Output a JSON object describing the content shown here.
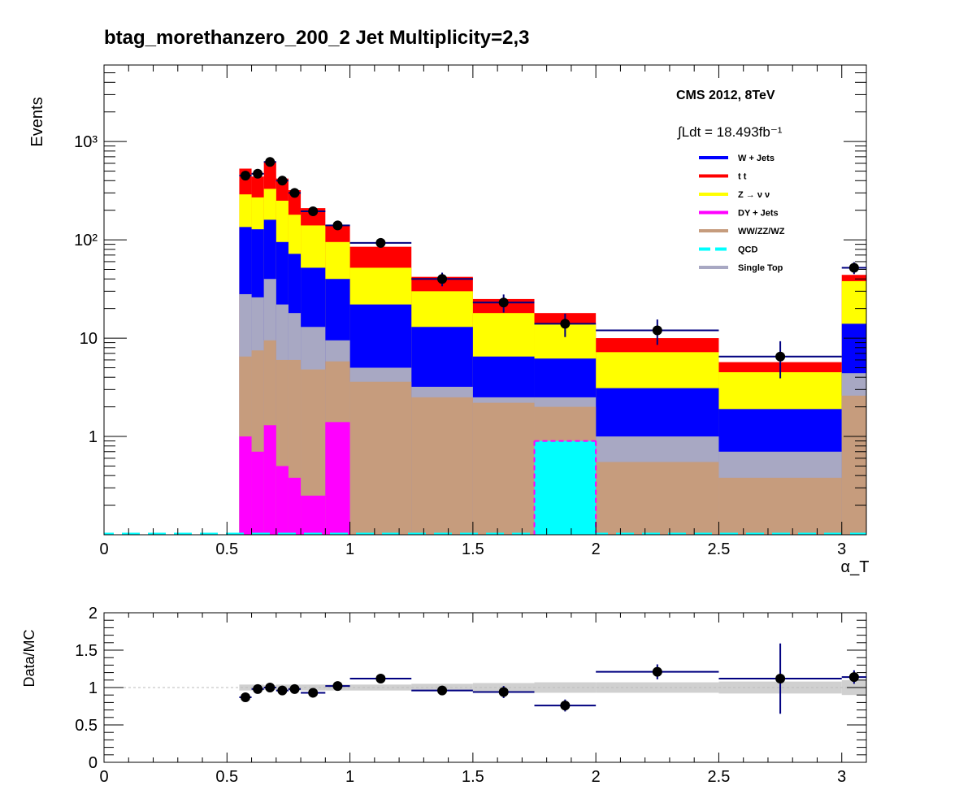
{
  "chart_data": [
    {
      "type": "stacked-histogram",
      "title": "btag_morethanzero_200_2    Jet Multiplicity=2,3",
      "ylabel": "Events",
      "xlabel": "α_T",
      "xlim": [
        0,
        3.1
      ],
      "ylim": [
        0.1,
        6000
      ],
      "yscale": "log",
      "x_ticks": [
        "0",
        "0.5",
        "1",
        "1.5",
        "2",
        "2.5",
        "3"
      ],
      "y_ticks": [
        {
          "value": 1,
          "label": "1"
        },
        {
          "value": 10,
          "label": "10"
        },
        {
          "value": 100,
          "label": "10²"
        },
        {
          "value": 1000,
          "label": "10³"
        }
      ],
      "annotations": {
        "experiment": "CMS 2012, 8TeV",
        "luminosity": "∫Ldt = 18.493fb⁻¹"
      },
      "legend": [
        {
          "label": "W + Jets",
          "color": "#0000ff"
        },
        {
          "label": "t   t",
          "color": "#ff0000"
        },
        {
          "label": "Z → ν   ν",
          "color": "#ffff00"
        },
        {
          "label": "DY + Jets",
          "color": "#ff00ff"
        },
        {
          "label": "WW/ZZ/WZ",
          "color": "#c69c7d"
        },
        {
          "label": "QCD",
          "color": "#00ffff"
        },
        {
          "label": "Single Top",
          "color": "#a8a8c3"
        }
      ],
      "bins": [
        [
          0.55,
          0.6
        ],
        [
          0.6,
          0.65
        ],
        [
          0.65,
          0.7
        ],
        [
          0.7,
          0.75
        ],
        [
          0.75,
          0.8
        ],
        [
          0.8,
          0.9
        ],
        [
          0.9,
          1.0
        ],
        [
          1.0,
          1.25
        ],
        [
          1.25,
          1.5
        ],
        [
          1.5,
          1.75
        ],
        [
          1.75,
          2.0
        ],
        [
          2.0,
          2.5
        ],
        [
          2.5,
          3.0
        ],
        [
          3.0,
          3.1
        ]
      ],
      "stack_order": [
        "QCD",
        "DY + Jets",
        "WW/ZZ/WZ",
        "Single Top",
        "W + Jets",
        "Z → ν   ν",
        "t   t"
      ],
      "stack_cumulative_tops": {
        "DY + Jets": [
          1.0,
          0.7,
          1.3,
          0.5,
          0.38,
          0.25,
          1.4,
          0,
          0,
          0,
          0.9,
          0,
          0,
          0
        ],
        "WW/ZZ/WZ": [
          6.5,
          7.5,
          9.5,
          6.0,
          6.0,
          4.8,
          5.8,
          3.6,
          2.5,
          2.2,
          2.0,
          0.55,
          0.38,
          2.6
        ],
        "Single Top": [
          28,
          26,
          40,
          22,
          18,
          13,
          9.5,
          5.0,
          3.2,
          2.5,
          2.5,
          1.0,
          0.7,
          4.4
        ],
        "W + Jets": [
          135,
          128,
          160,
          95,
          72,
          52,
          40,
          22,
          13,
          6.5,
          6.2,
          3.1,
          1.9,
          14
        ],
        "Z → ν   ν": [
          290,
          270,
          330,
          250,
          180,
          140,
          95,
          52,
          30,
          18,
          14,
          7.2,
          4.5,
          38
        ],
        "t   t": [
          530,
          440,
          620,
          420,
          320,
          210,
          140,
          85,
          42,
          25,
          18,
          10,
          5.7,
          44
        ]
      },
      "qcd_values": [
        0,
        0,
        0,
        0,
        0,
        0,
        0,
        0,
        0,
        0,
        0.9,
        0,
        0,
        0
      ],
      "data_points": [
        {
          "x": 0.575,
          "y": 450
        },
        {
          "x": 0.625,
          "y": 470
        },
        {
          "x": 0.675,
          "y": 620
        },
        {
          "x": 0.725,
          "y": 400
        },
        {
          "x": 0.775,
          "y": 300
        },
        {
          "x": 0.85,
          "y": 195
        },
        {
          "x": 0.95,
          "y": 140
        },
        {
          "x": 1.125,
          "y": 93
        },
        {
          "x": 1.375,
          "y": 40
        },
        {
          "x": 1.625,
          "y": 23
        },
        {
          "x": 1.875,
          "y": 14
        },
        {
          "x": 2.25,
          "y": 12
        },
        {
          "x": 2.75,
          "y": 6.5,
          "err_low": 2.6,
          "err_high": 2.8
        },
        {
          "x": 3.05,
          "y": 52
        }
      ]
    },
    {
      "type": "ratio",
      "ylabel": "Data/MC",
      "xlim": [
        0,
        3.1
      ],
      "ylim": [
        0,
        2
      ],
      "x_ticks": [
        "0",
        "0.5",
        "1",
        "1.5",
        "2",
        "2.5",
        "3"
      ],
      "y_ticks": [
        "0",
        "0.5",
        "1",
        "1.5",
        "2"
      ],
      "reference_line": 1,
      "mc_uncertainty_band": [
        0.04,
        0.04,
        0.03,
        0.04,
        0.04,
        0.04,
        0.04,
        0.04,
        0.05,
        0.06,
        0.07,
        0.07,
        0.08,
        0.1
      ],
      "points": [
        {
          "x": 0.575,
          "y": 0.87,
          "err": 0.04
        },
        {
          "x": 0.625,
          "y": 0.98,
          "err": 0.04
        },
        {
          "x": 0.675,
          "y": 1.0,
          "err": 0.04
        },
        {
          "x": 0.725,
          "y": 0.96,
          "err": 0.05
        },
        {
          "x": 0.775,
          "y": 0.98,
          "err": 0.05
        },
        {
          "x": 0.85,
          "y": 0.93,
          "err": 0.05
        },
        {
          "x": 0.95,
          "y": 1.02,
          "err": 0.05
        },
        {
          "x": 1.125,
          "y": 1.12,
          "err": 0.05
        },
        {
          "x": 1.375,
          "y": 0.96,
          "err": 0.06
        },
        {
          "x": 1.625,
          "y": 0.94,
          "err": 0.08
        },
        {
          "x": 1.875,
          "y": 0.76,
          "err": 0.08
        },
        {
          "x": 2.25,
          "y": 1.21,
          "err": 0.1
        },
        {
          "x": 2.75,
          "y": 1.12,
          "err": 0.47
        },
        {
          "x": 3.05,
          "y": 1.14,
          "err": 0.09
        }
      ]
    }
  ]
}
